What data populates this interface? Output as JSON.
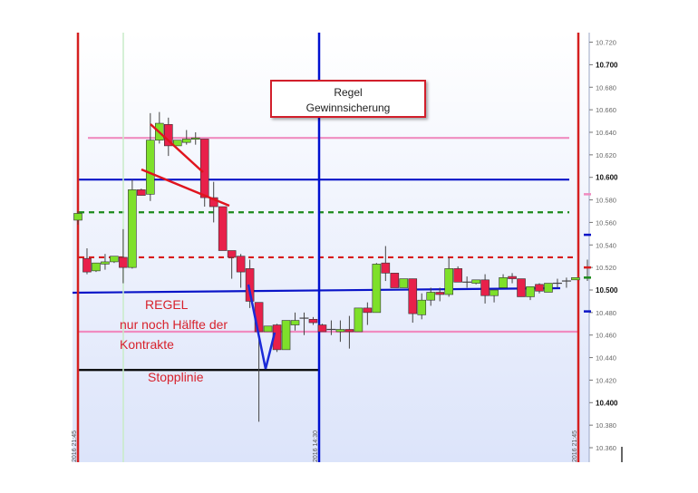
{
  "chart_data": {
    "type": "candlestick",
    "title": "",
    "ylim": [
      10.35,
      10.73
    ],
    "y_ticks": [
      "10.720",
      "10.700",
      "10.680",
      "10.660",
      "10.640",
      "10.620",
      "10.600",
      "10.580",
      "10.560",
      "10.540",
      "10.520",
      "10.500",
      "10.480",
      "10.460",
      "10.440",
      "10.420",
      "10.400",
      "10.380",
      "10.360"
    ],
    "x_labels": [
      "2016 21:45",
      "2016 14:30",
      "2016 21:45"
    ],
    "colors": {
      "up": "#7ee02a",
      "down": "#e8204a",
      "session_line": "#d52020",
      "day_line": "#0010d0",
      "background_top": "#ffffff",
      "background_bottom": "#dce4fa"
    },
    "candles_ohlc": [
      [
        10.562,
        10.57,
        10.558,
        10.568
      ],
      [
        10.528,
        10.537,
        10.514,
        10.516
      ],
      [
        10.517,
        10.524,
        10.516,
        10.524
      ],
      [
        10.523,
        10.532,
        10.518,
        10.525
      ],
      [
        10.525,
        10.53,
        10.524,
        10.53
      ],
      [
        10.529,
        10.554,
        10.506,
        10.52
      ],
      [
        10.52,
        10.598,
        10.519,
        10.589
      ],
      [
        10.589,
        10.59,
        10.584,
        10.584
      ],
      [
        10.585,
        10.657,
        10.579,
        10.633
      ],
      [
        10.633,
        10.658,
        10.63,
        10.648
      ],
      [
        10.647,
        10.653,
        10.619,
        10.628
      ],
      [
        10.628,
        10.63,
        10.628,
        10.633
      ],
      [
        10.631,
        10.642,
        10.629,
        10.634
      ],
      [
        10.634,
        10.64,
        10.629,
        10.635
      ],
      [
        10.634,
        10.634,
        10.574,
        10.582
      ],
      [
        10.582,
        10.596,
        10.56,
        10.574
      ],
      [
        10.574,
        10.574,
        10.535,
        10.535
      ],
      [
        10.535,
        10.535,
        10.51,
        10.529
      ],
      [
        10.53,
        10.532,
        10.502,
        10.516
      ],
      [
        10.519,
        10.527,
        10.484,
        10.49
      ],
      [
        10.489,
        10.489,
        10.383,
        10.463
      ],
      [
        10.463,
        10.468,
        10.463,
        10.468
      ],
      [
        10.469,
        10.47,
        10.445,
        10.447
      ],
      [
        10.447,
        10.473,
        10.447,
        10.473
      ],
      [
        10.469,
        10.48,
        10.464,
        10.473
      ],
      [
        10.475,
        10.48,
        10.46,
        10.475
      ],
      [
        10.474,
        10.476,
        10.469,
        10.471
      ],
      [
        10.469,
        10.47,
        10.463,
        10.463
      ],
      [
        10.465,
        10.473,
        10.46,
        10.465
      ],
      [
        10.463,
        10.473,
        10.454,
        10.465
      ],
      [
        10.465,
        10.477,
        10.448,
        10.463
      ],
      [
        10.463,
        10.484,
        10.463,
        10.484
      ],
      [
        10.484,
        10.489,
        10.469,
        10.48
      ],
      [
        10.48,
        10.524,
        10.48,
        10.523
      ],
      [
        10.524,
        10.539,
        10.508,
        10.515
      ],
      [
        10.515,
        10.515,
        10.502,
        10.502
      ],
      [
        10.502,
        10.51,
        10.502,
        10.51
      ],
      [
        10.51,
        10.51,
        10.471,
        10.479
      ],
      [
        10.478,
        10.497,
        10.474,
        10.491
      ],
      [
        10.491,
        10.502,
        10.486,
        10.498
      ],
      [
        10.498,
        10.502,
        10.49,
        10.496
      ],
      [
        10.496,
        10.529,
        10.494,
        10.519
      ],
      [
        10.519,
        10.521,
        10.507,
        10.507
      ],
      [
        10.507,
        10.512,
        10.502,
        10.507
      ],
      [
        10.506,
        10.509,
        10.505,
        10.509
      ],
      [
        10.509,
        10.514,
        10.488,
        10.495
      ],
      [
        10.495,
        10.498,
        10.489,
        10.5
      ],
      [
        10.502,
        10.514,
        10.502,
        10.511
      ],
      [
        10.512,
        10.515,
        10.506,
        10.51
      ],
      [
        10.51,
        10.51,
        10.494,
        10.494
      ],
      [
        10.494,
        10.503,
        10.491,
        10.503
      ],
      [
        10.505,
        10.506,
        10.497,
        10.499
      ],
      [
        10.498,
        10.506,
        10.498,
        10.506
      ],
      [
        10.506,
        10.51,
        10.502,
        10.506
      ],
      [
        10.508,
        10.511,
        10.502,
        10.508
      ],
      [
        10.509,
        10.511,
        10.509,
        10.511
      ]
    ],
    "levels": [
      {
        "price": 10.635,
        "color": "#f08cc0",
        "style": "solid"
      },
      {
        "price": 10.598,
        "color": "#0a14c8",
        "style": "solid"
      },
      {
        "price": 10.569,
        "color": "#1a8a1a",
        "style": "dashed"
      },
      {
        "price": 10.529,
        "color": "#d81c1c",
        "style": "dashed"
      },
      {
        "price": 10.5,
        "color": "#0a14c8",
        "style": "solid"
      },
      {
        "price": 10.463,
        "color": "#f08cc0",
        "style": "solid"
      },
      {
        "price": 10.429,
        "color": "#000000",
        "style": "solid"
      }
    ],
    "right_markers": [
      {
        "price": 10.585,
        "color": "#f08cc0"
      },
      {
        "price": 10.549,
        "color": "#0a14c8"
      },
      {
        "price": 10.481,
        "color": "#0a14c8"
      },
      {
        "price": 10.52,
        "color": "#d81c1c"
      },
      {
        "price": 10.511,
        "color": "#1a8a1a"
      }
    ]
  },
  "callout": {
    "line1": "Regel",
    "line2": "Gewinnsicherung"
  },
  "annotations": {
    "regel": "REGEL",
    "half_line": "nur noch Hälfte der",
    "contracts": "Kontrakte",
    "stop": "Stopplinie"
  }
}
